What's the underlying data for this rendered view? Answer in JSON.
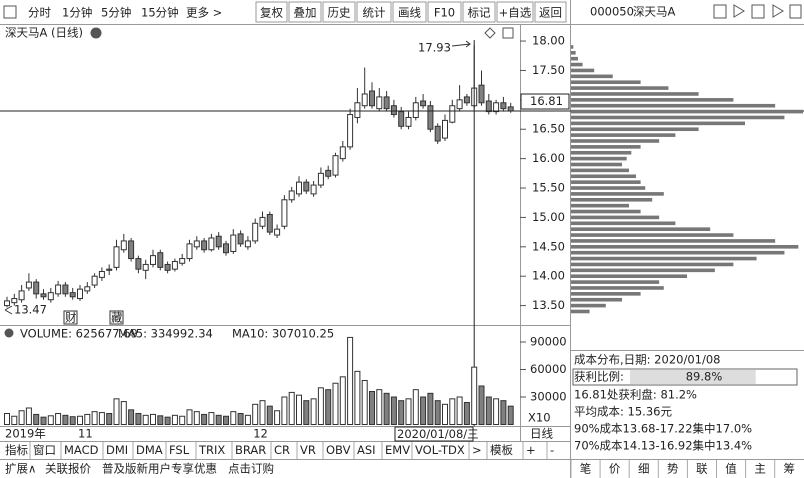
{
  "toolbar": {
    "tabs": [
      "分时",
      "1分钟",
      "5分钟",
      "15分钟",
      "更多 >"
    ],
    "buttons": [
      "复权",
      "叠加",
      "历史",
      "统计",
      "画线",
      "F10",
      "标记",
      "+自选",
      "返回"
    ]
  },
  "panel_header": {
    "code": "000050",
    "name": "深天马A"
  },
  "chart_data": {
    "type": "candlestick",
    "title": "深天马A (日线)",
    "categories": [
      "2019年",
      null,
      null,
      null,
      null,
      null,
      null,
      null,
      null,
      null,
      "11",
      null,
      null,
      null,
      null,
      null,
      null,
      null,
      null,
      null,
      null,
      null,
      null,
      null,
      null,
      null,
      null,
      null,
      null,
      null,
      null,
      null,
      null,
      null,
      "12",
      null,
      null,
      null,
      null,
      null,
      null,
      null,
      null,
      null,
      null,
      null,
      null,
      null,
      null,
      null,
      null,
      null,
      null,
      null,
      null,
      null,
      null,
      null,
      null,
      null,
      null,
      null,
      null,
      null,
      null,
      null,
      null,
      null,
      null,
      null
    ],
    "open": [
      13.5,
      13.55,
      13.6,
      13.8,
      13.9,
      13.7,
      13.6,
      13.7,
      13.85,
      13.72,
      13.62,
      13.75,
      13.85,
      13.98,
      14.12,
      14.15,
      14.45,
      14.6,
      14.3,
      14.1,
      14.2,
      14.4,
      14.2,
      14.12,
      14.22,
      14.3,
      14.5,
      14.6,
      14.45,
      14.68,
      14.55,
      14.42,
      14.72,
      14.5,
      14.6,
      14.85,
      15.05,
      14.7,
      14.85,
      15.3,
      15.4,
      15.6,
      15.4,
      15.55,
      15.8,
      15.72,
      16.0,
      16.2,
      16.7,
      16.9,
      17.15,
      16.85,
      17.05,
      16.9,
      16.8,
      16.55,
      16.7,
      16.98,
      16.9,
      16.55,
      16.35,
      16.62,
      16.85,
      17.05,
      16.9,
      17.25,
      16.98,
      16.8,
      16.95,
      16.88
    ],
    "high": [
      13.65,
      13.7,
      13.85,
      14.05,
      13.95,
      13.78,
      13.8,
      13.92,
      13.9,
      13.8,
      13.85,
      13.9,
      14.05,
      14.15,
      14.2,
      14.62,
      14.72,
      14.65,
      14.35,
      14.28,
      14.45,
      14.45,
      14.25,
      14.3,
      14.38,
      14.62,
      14.68,
      14.65,
      14.72,
      14.75,
      14.6,
      14.8,
      14.78,
      14.68,
      14.98,
      15.1,
      15.1,
      14.88,
      15.38,
      15.52,
      15.7,
      15.65,
      15.62,
      15.85,
      15.88,
      16.1,
      16.3,
      16.85,
      17.2,
      17.55,
      17.3,
      17.2,
      17.15,
      17.0,
      16.88,
      16.8,
      17.05,
      17.1,
      16.98,
      16.6,
      16.75,
      17.0,
      17.25,
      17.1,
      17.93,
      17.5,
      17.1,
      17.0,
      17.05,
      16.95
    ],
    "low": [
      13.47,
      13.5,
      13.55,
      13.75,
      13.62,
      13.6,
      13.55,
      13.65,
      13.65,
      13.6,
      13.58,
      13.7,
      13.8,
      13.92,
      14.02,
      14.1,
      14.4,
      14.25,
      14.05,
      13.95,
      14.15,
      14.1,
      14.05,
      14.08,
      14.18,
      14.25,
      14.45,
      14.4,
      14.42,
      14.45,
      14.35,
      14.38,
      14.5,
      14.45,
      14.55,
      14.8,
      14.7,
      14.65,
      14.8,
      15.25,
      15.35,
      15.4,
      15.35,
      15.5,
      15.65,
      15.68,
      15.95,
      16.15,
      16.6,
      16.85,
      16.85,
      16.8,
      16.8,
      16.7,
      16.5,
      16.5,
      16.65,
      16.85,
      16.45,
      16.25,
      16.3,
      16.6,
      16.8,
      16.9,
      16.85,
      16.9,
      16.75,
      16.75,
      16.8,
      16.78
    ],
    "close": [
      13.58,
      13.62,
      13.75,
      13.9,
      13.7,
      13.65,
      13.72,
      13.85,
      13.7,
      13.65,
      13.78,
      13.82,
      14.0,
      14.08,
      14.1,
      14.5,
      14.6,
      14.3,
      14.12,
      14.2,
      14.35,
      14.15,
      14.1,
      14.25,
      14.3,
      14.55,
      14.6,
      14.45,
      14.65,
      14.5,
      14.4,
      14.7,
      14.55,
      14.6,
      14.9,
      15.0,
      14.75,
      14.8,
      15.3,
      15.45,
      15.6,
      15.45,
      15.55,
      15.75,
      15.7,
      16.05,
      16.2,
      16.75,
      16.95,
      17.1,
      16.9,
      17.05,
      16.85,
      16.75,
      16.55,
      16.7,
      16.95,
      16.9,
      16.5,
      16.3,
      16.65,
      16.9,
      17.0,
      16.95,
      17.2,
      16.95,
      16.8,
      16.95,
      16.85,
      16.81
    ],
    "ylim": [
      13.17,
      18.29
    ],
    "yticks": [
      {
        "value": 18,
        "label": "18.00"
      },
      {
        "value": 17.5,
        "label": "17.50"
      },
      {
        "value": 17,
        "label": "17.00"
      },
      {
        "value": 16.5,
        "label": "16.50"
      },
      {
        "value": 16,
        "label": "16.00"
      },
      {
        "value": 15.5,
        "label": "15.50"
      },
      {
        "value": 15,
        "label": "15.00"
      },
      {
        "value": 14.5,
        "label": "14.50"
      },
      {
        "value": 14,
        "label": "14.00"
      },
      {
        "value": 13.5,
        "label": "13.50"
      }
    ],
    "current_price": 16.81,
    "max_label": 17.93,
    "min_label": 13.47,
    "markers": [
      "财",
      "藏"
    ],
    "cursor_date": "2020/01/08/三",
    "period": "日线",
    "colors": {
      "up": "#ffffff",
      "down": "#808080",
      "edge": "#333333"
    }
  },
  "volume": {
    "header": [
      "VOLUME: 625677.69",
      "MA5: 334992.34",
      "MA10: 307010.25"
    ],
    "values": [
      12000,
      9000,
      15000,
      18000,
      11000,
      8000,
      9500,
      12000,
      10000,
      8500,
      9000,
      11000,
      14000,
      13000,
      12000,
      28000,
      25000,
      16000,
      12000,
      10000,
      11000,
      9500,
      8000,
      10000,
      9000,
      16000,
      14000,
      11000,
      13000,
      10000,
      9000,
      14000,
      12000,
      10000,
      22000,
      26000,
      20000,
      15000,
      30000,
      35000,
      32000,
      26000,
      28000,
      40000,
      38000,
      45000,
      52000,
      95000,
      58000,
      48000,
      36000,
      38000,
      34000,
      30000,
      26000,
      28000,
      38000,
      30000,
      34000,
      26000,
      22000,
      28000,
      30000,
      24000,
      62568,
      42000,
      30000,
      28000,
      26000,
      20000
    ],
    "ylim": [
      0,
      107450
    ],
    "yticks": [
      30000,
      60000,
      90000
    ],
    "multiplier": "X10"
  },
  "chips": {
    "levels": [
      13.4,
      13.5,
      13.6,
      13.7,
      13.8,
      13.9,
      14.0,
      14.1,
      14.2,
      14.3,
      14.4,
      14.5,
      14.6,
      14.7,
      14.8,
      14.9,
      15.0,
      15.1,
      15.2,
      15.3,
      15.4,
      15.5,
      15.6,
      15.7,
      15.8,
      15.9,
      16.0,
      16.1,
      16.2,
      16.3,
      16.4,
      16.5,
      16.6,
      16.7,
      16.8,
      16.9,
      17.0,
      17.1,
      17.2,
      17.3,
      17.4,
      17.5,
      17.6,
      17.7,
      17.8,
      17.9
    ],
    "values": [
      8,
      15,
      22,
      30,
      40,
      38,
      50,
      62,
      70,
      80,
      92,
      98,
      88,
      70,
      60,
      45,
      38,
      30,
      25,
      35,
      40,
      32,
      30,
      28,
      25,
      22,
      24,
      26,
      30,
      38,
      45,
      55,
      75,
      92,
      100,
      88,
      70,
      55,
      42,
      30,
      18,
      10,
      5,
      3,
      2,
      1
    ],
    "xlim": [
      0,
      100
    ]
  },
  "info": {
    "title": "成本分布,日期: 2020/01/08",
    "profit": {
      "label": "获利比例:",
      "value": 89.8,
      "value_label": "89.8%"
    },
    "lines": [
      "16.81处获利盘: 81.2%",
      "平均成本: 15.36元",
      "90%成本13.68-17.22集中17.0%",
      "70%成本14.13-16.92集中13.4%"
    ]
  },
  "indicator_tabs": [
    "指标",
    "窗口",
    "MACD",
    "DMI",
    "DMA",
    "FSL",
    "TRIX",
    "BRAR",
    "CR",
    "VR",
    "OBV",
    "ASI",
    "EMV",
    "VOL-TDX",
    ">",
    "模板",
    "+",
    "-"
  ],
  "status_bar": [
    "扩展∧",
    "关联报价",
    "普及版新用户专享优惠",
    "点击订购"
  ],
  "right_tabs": [
    "笔",
    "价",
    "细",
    "势",
    "联",
    "值",
    "主",
    "筹"
  ]
}
